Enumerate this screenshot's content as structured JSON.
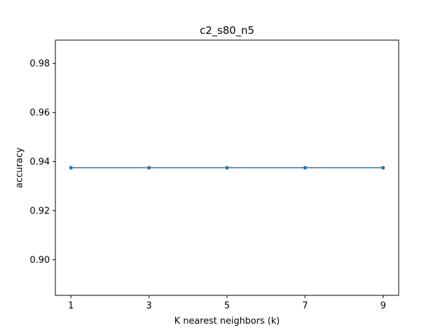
{
  "chart_data": {
    "type": "line",
    "title": "c2_s80_n5",
    "xlabel": "K nearest neighbors (k)",
    "ylabel": "accuracy",
    "x": [
      1,
      3,
      5,
      7,
      9
    ],
    "xticks": [
      "1",
      "3",
      "5",
      "7",
      "9"
    ],
    "xlim": [
      0.6,
      9.4
    ],
    "ylim": [
      0.8855,
      0.9895
    ],
    "yticks": [
      "0.90",
      "0.92",
      "0.94",
      "0.96",
      "0.98"
    ],
    "ytick_values": [
      0.9,
      0.92,
      0.94,
      0.96,
      0.98
    ],
    "series": [
      {
        "values": [
          0.9375,
          0.9375,
          0.9375,
          0.9375,
          0.9375
        ],
        "color": "#1f77b4",
        "marker": "circle"
      }
    ],
    "grid": false,
    "legend": "none"
  }
}
